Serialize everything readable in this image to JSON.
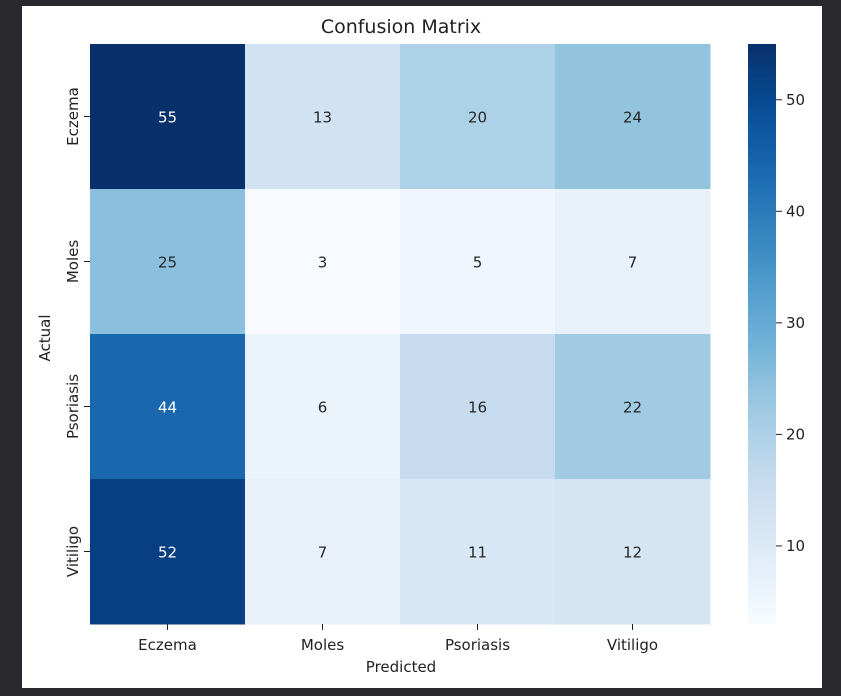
{
  "chart_data": {
    "type": "heatmap",
    "title": "Confusion Matrix",
    "xlabel": "Predicted",
    "ylabel": "Actual",
    "x_categories": [
      "Eczema",
      "Moles",
      "Psoriasis",
      "Vitiligo"
    ],
    "y_categories": [
      "Eczema",
      "Moles",
      "Psoriasis",
      "Vitiligo"
    ],
    "values": [
      [
        55,
        13,
        20,
        24
      ],
      [
        25,
        3,
        5,
        7
      ],
      [
        44,
        6,
        16,
        22
      ],
      [
        52,
        7,
        11,
        12
      ]
    ],
    "colormap": "Blues",
    "vmin": 3,
    "vmax": 55,
    "colorbar_ticks": [
      10,
      20,
      30,
      40,
      50
    ],
    "colorbar_tick_labels": [
      "10",
      "20",
      "30",
      "40",
      "50"
    ]
  }
}
